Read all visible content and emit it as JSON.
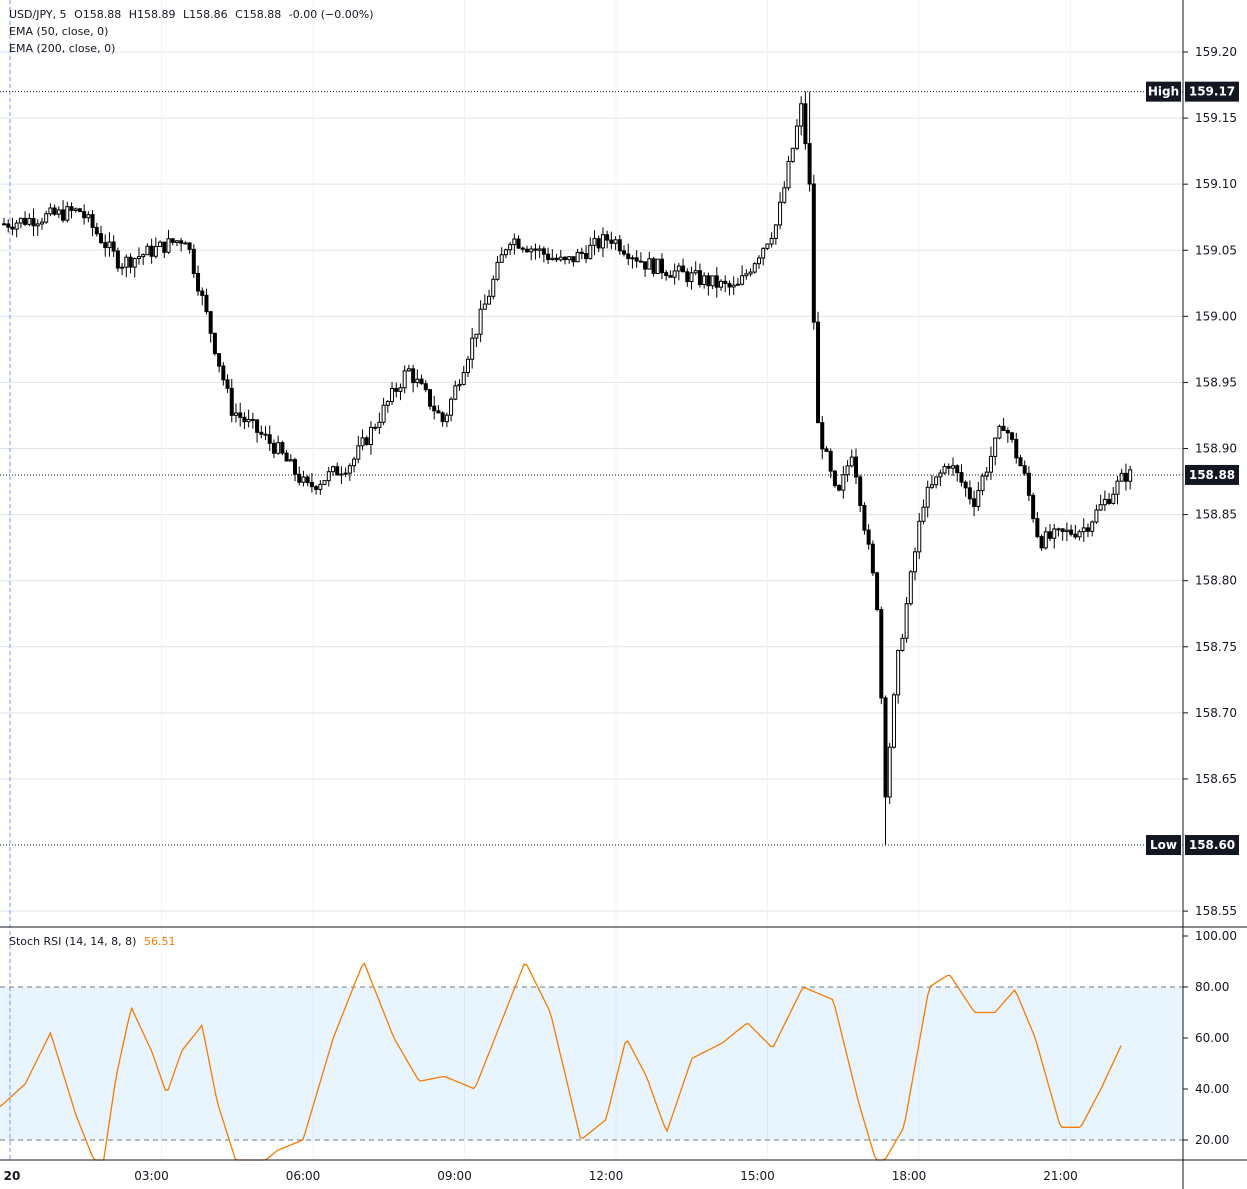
{
  "header": {
    "symbol": "USD/JPY, 5",
    "open": "O158.88",
    "high": "H158.89",
    "low": "L158.86",
    "close": "C158.88",
    "change": "-0.00 (−0.00%)",
    "indicators": [
      "EMA (50, close, 0)",
      "EMA (200, close, 0)"
    ]
  },
  "stoch_rsi": {
    "label": "Stoch RSI (14, 14, 8, 8)",
    "value": "56.51",
    "color": "#f57c00"
  },
  "markers": {
    "high_label": "High",
    "high_value": "159.17",
    "low_label": "Low",
    "low_value": "158.60",
    "last_value": "158.88"
  },
  "chart_data": [
    {
      "type": "candlestick",
      "ylim": [
        158.535,
        159.28
      ],
      "y_ticks": [
        "159.20",
        "159.15",
        "159.10",
        "159.05",
        "159.00",
        "158.95",
        "158.90",
        "158.85",
        "158.80",
        "158.75",
        "158.70",
        "158.65",
        "158.55"
      ],
      "x_ticks": [
        "20",
        "03:00",
        "06:00",
        "09:00",
        "12:00",
        "15:00",
        "18:00",
        "21:00"
      ],
      "x_range_hours": [
        0,
        23.3
      ],
      "grid": true,
      "series": [
        {
          "name": "USD/JPY, 5",
          "x_hours": [
            0,
            1.5,
            2.3,
            3.6,
            4.5,
            5.4,
            6.0,
            6.9,
            8.0,
            8.7,
            10.0,
            11.1,
            12.0,
            12.7,
            13.6,
            14.5,
            15.3,
            15.8,
            15.95,
            16.1,
            16.5,
            16.8,
            17.3,
            17.45,
            17.7,
            18.2,
            18.7,
            19.2,
            19.8,
            20.2,
            20.5,
            21.4,
            22.2
          ],
          "close": [
            159.07,
            159.08,
            159.04,
            159.06,
            158.93,
            158.9,
            158.87,
            158.89,
            158.96,
            158.92,
            159.06,
            159.04,
            159.06,
            159.04,
            159.03,
            159.02,
            159.07,
            159.16,
            159.1,
            158.92,
            158.86,
            158.9,
            158.78,
            158.64,
            158.74,
            158.86,
            158.89,
            158.86,
            158.92,
            158.88,
            158.83,
            158.84,
            158.88
          ]
        }
      ]
    },
    {
      "type": "line",
      "title": "Stoch RSI (14, 14, 8, 8)",
      "ylim": [
        15,
        102
      ],
      "y_ticks": [
        "100.00",
        "80.00",
        "60.00",
        "40.00",
        "20.00"
      ],
      "band": [
        20,
        80
      ],
      "series": [
        {
          "name": "Stoch RSI",
          "x_hours": [
            0,
            0.5,
            1.0,
            1.5,
            2.0,
            2.3,
            2.6,
            3.0,
            3.3,
            3.6,
            4.0,
            4.3,
            4.7,
            5.0,
            5.5,
            6.0,
            6.6,
            7.2,
            7.8,
            8.3,
            8.8,
            9.4,
            10.0,
            10.4,
            10.9,
            11.5,
            12.0,
            12.4,
            12.8,
            13.2,
            13.7,
            14.3,
            14.8,
            15.3,
            15.9,
            16.5,
            17.0,
            17.4,
            17.9,
            18.4,
            18.8,
            19.3,
            19.7,
            20.1,
            20.5,
            21.0,
            21.4,
            21.8,
            22.2
          ],
          "values": [
            33,
            42,
            62,
            30,
            5,
            45,
            72,
            55,
            38,
            55,
            65,
            35,
            10,
            8,
            16,
            20,
            60,
            90,
            60,
            43,
            45,
            40,
            70,
            90,
            70,
            20,
            28,
            60,
            45,
            23,
            52,
            58,
            66,
            56,
            80,
            75,
            35,
            8,
            25,
            80,
            85,
            70,
            70,
            79,
            60,
            25,
            25,
            40,
            57
          ]
        }
      ]
    }
  ]
}
